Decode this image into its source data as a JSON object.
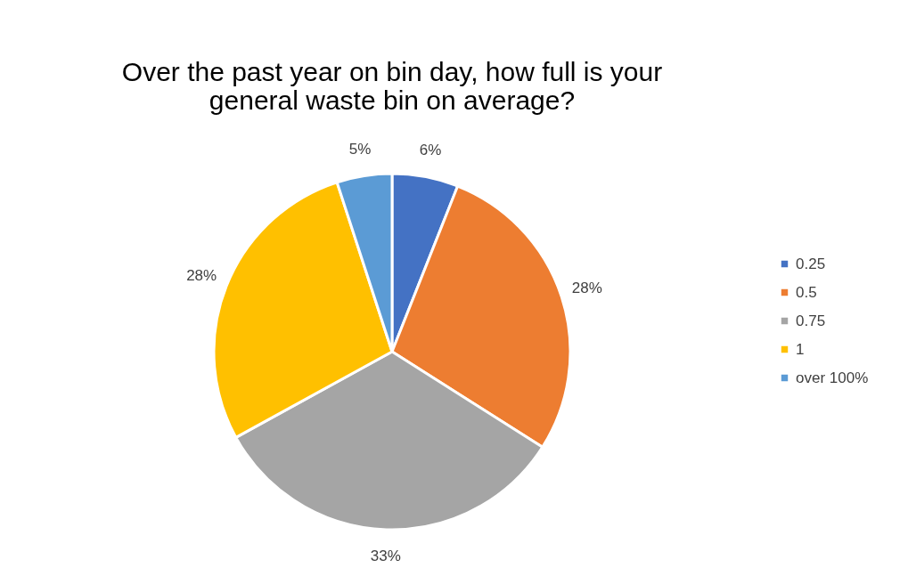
{
  "chart_data": {
    "type": "pie",
    "title": "Over the past year on bin day, how full is your general waste bin on average?",
    "categories": [
      "0.25",
      "0.5",
      "0.75",
      "1",
      "over 100%"
    ],
    "values": [
      6,
      28,
      33,
      28,
      5
    ],
    "value_labels": [
      "6%",
      "28%",
      "33%",
      "28%",
      "5%"
    ],
    "colors": [
      "#4472c4",
      "#ed7d31",
      "#a5a5a5",
      "#ffc000",
      "#5b9bd5"
    ],
    "legend": "right"
  }
}
